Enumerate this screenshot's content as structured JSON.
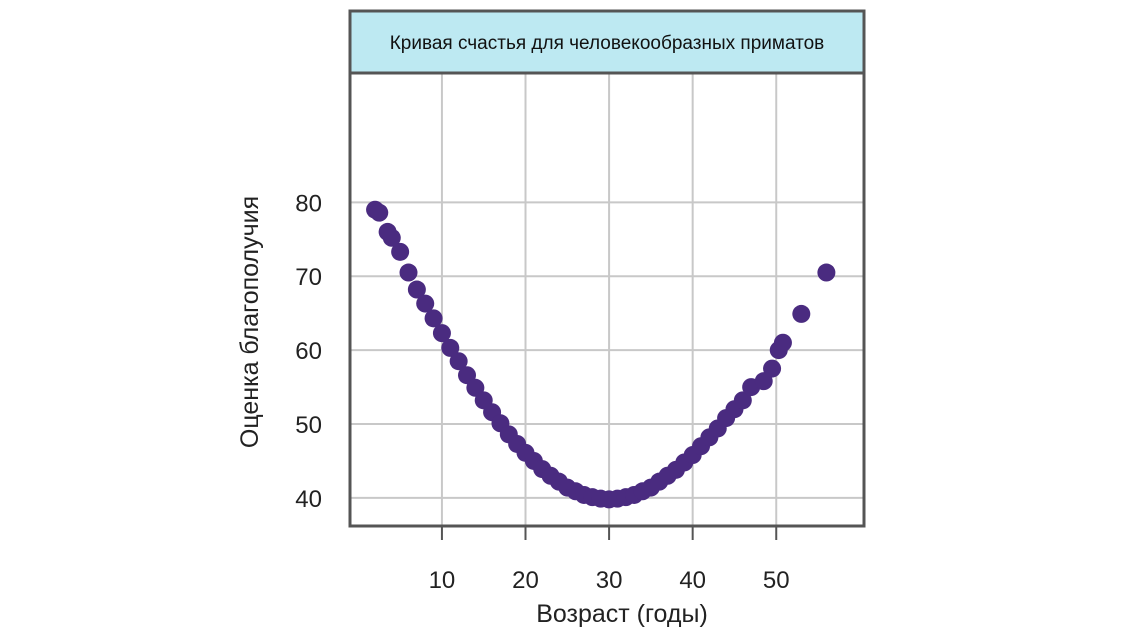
{
  "chart_data": {
    "type": "scatter",
    "title": "Кривая счастья для человекообразных приматов",
    "xlabel": "Возраст (годы)",
    "ylabel": "Оценка благополучия",
    "xlim": [
      -1,
      60.5
    ],
    "ylim": [
      36.2,
      97.5
    ],
    "xticks": [
      10,
      20,
      30,
      40,
      50
    ],
    "yticks": [
      40,
      50,
      60,
      70,
      80
    ],
    "grid": true,
    "colors": {
      "points": "#4a2b80",
      "title_band": "#bde9f2",
      "frame": "#555555",
      "grid": "#c8c8c8"
    },
    "series": [
      {
        "values": [
          [
            2.0,
            79.0
          ],
          [
            2.5,
            78.6
          ],
          [
            3.5,
            76.0
          ],
          [
            4.0,
            75.2
          ],
          [
            5.0,
            73.3
          ],
          [
            6.0,
            70.5
          ],
          [
            7.0,
            68.2
          ],
          [
            8.0,
            66.3
          ],
          [
            9.0,
            64.3
          ],
          [
            10.0,
            62.3
          ],
          [
            11.0,
            60.3
          ],
          [
            12.0,
            58.5
          ],
          [
            13.0,
            56.6
          ],
          [
            14.0,
            54.9
          ],
          [
            15.0,
            53.2
          ],
          [
            16.0,
            51.6
          ],
          [
            17.0,
            50.1
          ],
          [
            18.0,
            48.6
          ],
          [
            19.0,
            47.3
          ],
          [
            20.0,
            46.1
          ],
          [
            21.0,
            45.0
          ],
          [
            22.0,
            43.9
          ],
          [
            23.0,
            43.0
          ],
          [
            24.0,
            42.2
          ],
          [
            25.0,
            41.4
          ],
          [
            26.0,
            40.9
          ],
          [
            27.0,
            40.4
          ],
          [
            28.0,
            40.1
          ],
          [
            29.0,
            39.9
          ],
          [
            30.0,
            39.8
          ],
          [
            31.0,
            39.9
          ],
          [
            32.0,
            40.1
          ],
          [
            33.0,
            40.4
          ],
          [
            34.0,
            40.9
          ],
          [
            35.0,
            41.4
          ],
          [
            36.0,
            42.2
          ],
          [
            37.0,
            43.0
          ],
          [
            38.0,
            43.8
          ],
          [
            39.0,
            44.8
          ],
          [
            40.0,
            45.8
          ],
          [
            41.0,
            47.0
          ],
          [
            42.0,
            48.2
          ],
          [
            43.0,
            49.4
          ],
          [
            44.0,
            50.8
          ],
          [
            45.0,
            52.0
          ],
          [
            46.0,
            53.2
          ],
          [
            47.0,
            55.0
          ],
          [
            48.5,
            55.8
          ],
          [
            49.5,
            57.5
          ],
          [
            50.3,
            60.0
          ],
          [
            50.8,
            61.0
          ],
          [
            53.0,
            64.9
          ],
          [
            56.0,
            70.5
          ]
        ]
      }
    ]
  }
}
